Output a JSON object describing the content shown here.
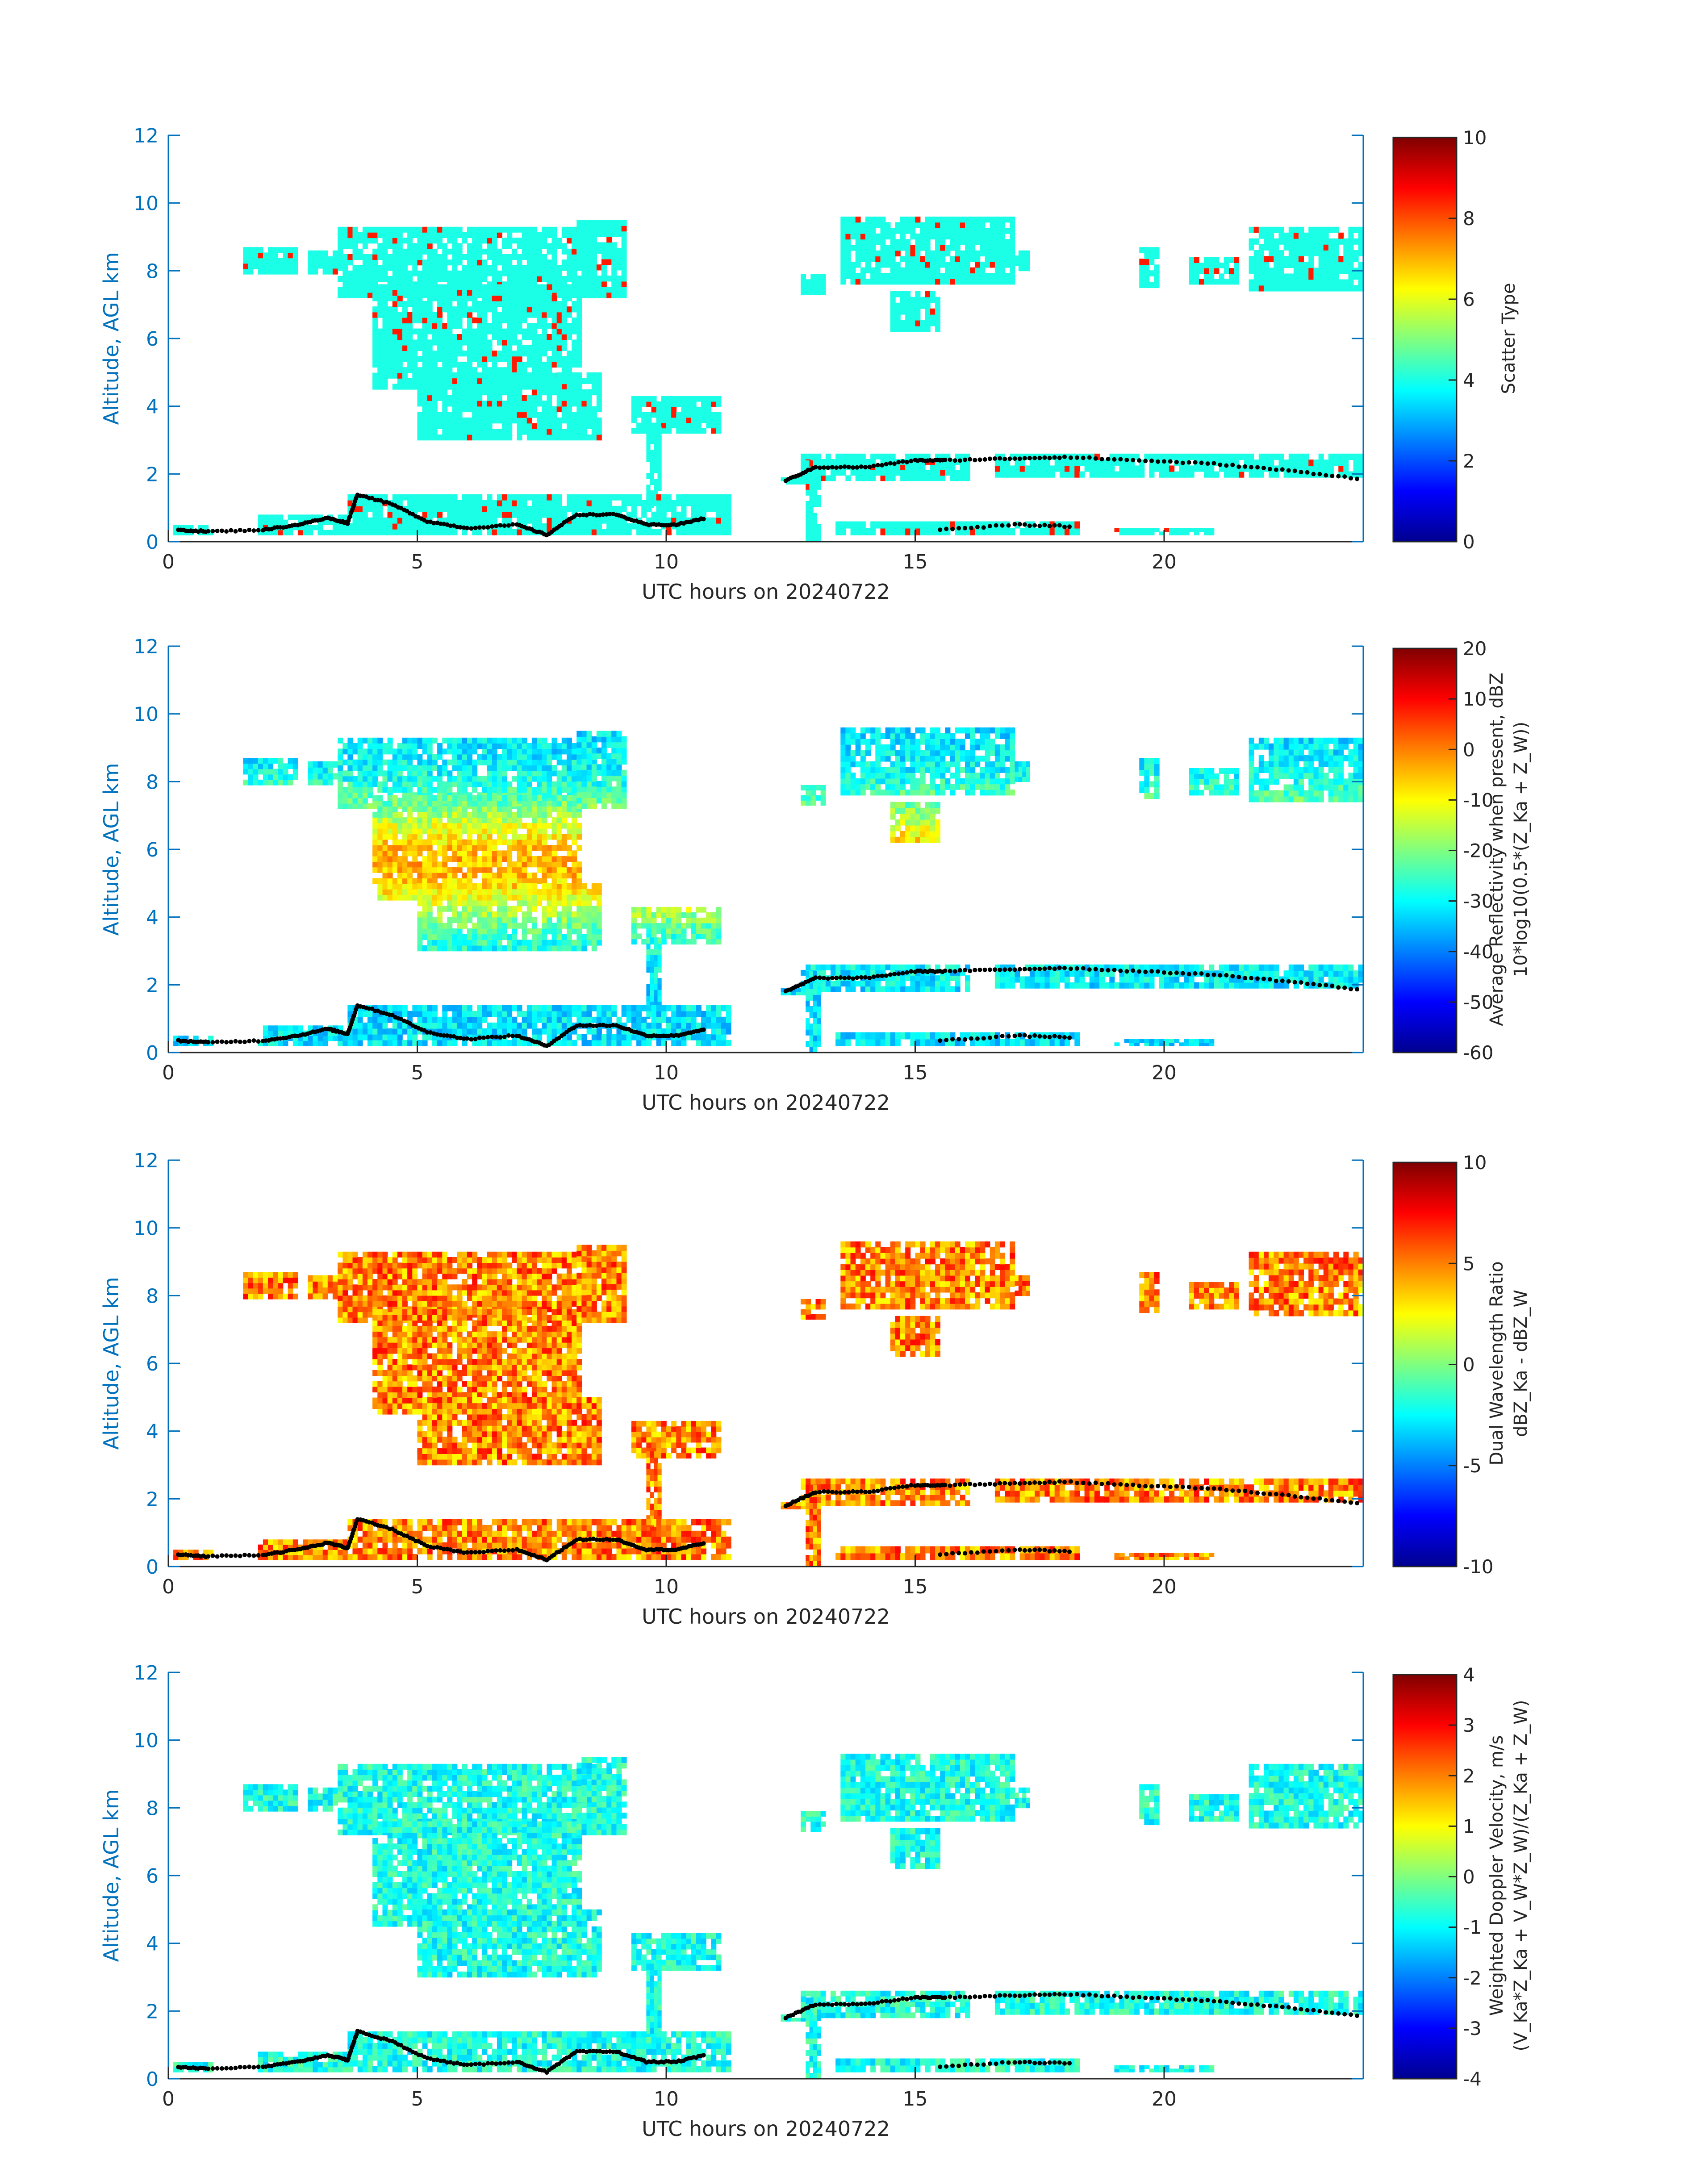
{
  "figure": {
    "panels": [
      {
        "id": "scatter",
        "ylabel": "Altitude, AGL km",
        "xlabel": "UTC hours on 20240722",
        "cbar_label_lines": [
          "Scatter Type"
        ],
        "cbar_ticks": [
          "0",
          "2",
          "4",
          "6",
          "8",
          "10"
        ]
      },
      {
        "id": "reflectivity",
        "ylabel": "Altitude, AGL km",
        "xlabel": "UTC hours on 20240722",
        "cbar_label_lines": [
          "Average Reflectivity when present, dBZ",
          "10*log10(0.5*(Z_Ka + Z_W))"
        ],
        "cbar_ticks": [
          "-60",
          "-50",
          "-40",
          "-30",
          "-20",
          "-10",
          "0",
          "10",
          "20"
        ]
      },
      {
        "id": "dwr",
        "ylabel": "Altitude, AGL km",
        "xlabel": "UTC hours on 20240722",
        "cbar_label_lines": [
          "Dual Wavelength Ratio",
          "dBZ_Ka - dBZ_W"
        ],
        "cbar_ticks": [
          "-10",
          "-5",
          "0",
          "5",
          "10"
        ]
      },
      {
        "id": "velocity",
        "ylabel": "Altitude, AGL km",
        "xlabel": "UTC hours on 20240722",
        "cbar_label_lines": [
          "Weighted Doppler Velocity, m/s",
          "(V_Ka*Z_Ka + V_W*Z_W)/(Z_Ka + Z_W)"
        ],
        "cbar_ticks": [
          "-4",
          "-3",
          "-2",
          "-1",
          "0",
          "1",
          "2",
          "3",
          "4"
        ]
      }
    ],
    "axis_color": "#0072BD"
  },
  "chart_data": [
    {
      "type": "heatmap",
      "xlabel": "UTC hours on 20240722",
      "ylabel": "Altitude, AGL km",
      "xlim": [
        0,
        24
      ],
      "ylim": [
        0,
        12
      ],
      "xticks": [
        0,
        5,
        10,
        15,
        20
      ],
      "yticks": [
        0,
        2,
        4,
        6,
        8,
        10,
        12
      ],
      "colorbar": {
        "label": "Scatter Type",
        "range": [
          0,
          10
        ],
        "ticks": [
          0,
          2,
          4,
          6,
          8,
          10
        ]
      },
      "dominant_value": 4
    },
    {
      "type": "heatmap",
      "xlabel": "UTC hours on 20240722",
      "ylabel": "Altitude, AGL km",
      "xlim": [
        0,
        24
      ],
      "ylim": [
        0,
        12
      ],
      "xticks": [
        0,
        5,
        10,
        15,
        20
      ],
      "yticks": [
        0,
        2,
        4,
        6,
        8,
        10,
        12
      ],
      "colorbar": {
        "label": "Average Reflectivity when present, dBZ 10*log10(0.5*(Z_Ka + Z_W))",
        "range": [
          -60,
          20
        ],
        "ticks": [
          -60,
          -50,
          -40,
          -30,
          -20,
          -10,
          0,
          10,
          20
        ]
      }
    },
    {
      "type": "heatmap",
      "xlabel": "UTC hours on 20240722",
      "ylabel": "Altitude, AGL km",
      "xlim": [
        0,
        24
      ],
      "ylim": [
        0,
        12
      ],
      "xticks": [
        0,
        5,
        10,
        15,
        20
      ],
      "yticks": [
        0,
        2,
        4,
        6,
        8,
        10,
        12
      ],
      "colorbar": {
        "label": "Dual Wavelength Ratio dBZ_Ka - dBZ_W",
        "range": [
          -10,
          10
        ],
        "ticks": [
          -10,
          -5,
          0,
          5,
          10
        ]
      }
    },
    {
      "type": "heatmap",
      "xlabel": "UTC hours on 20240722",
      "ylabel": "Altitude, AGL km",
      "xlim": [
        0,
        24
      ],
      "ylim": [
        0,
        12
      ],
      "xticks": [
        0,
        5,
        10,
        15,
        20
      ],
      "yticks": [
        0,
        2,
        4,
        6,
        8,
        10,
        12
      ],
      "colorbar": {
        "label": "Weighted Doppler Velocity, m/s (V_Ka*Z_Ka + V_W*Z_W)/(Z_Ka + Z_W)",
        "range": [
          -4,
          4
        ],
        "ticks": [
          -4,
          -3,
          -2,
          -1,
          0,
          1,
          2,
          3,
          4
        ]
      }
    }
  ]
}
